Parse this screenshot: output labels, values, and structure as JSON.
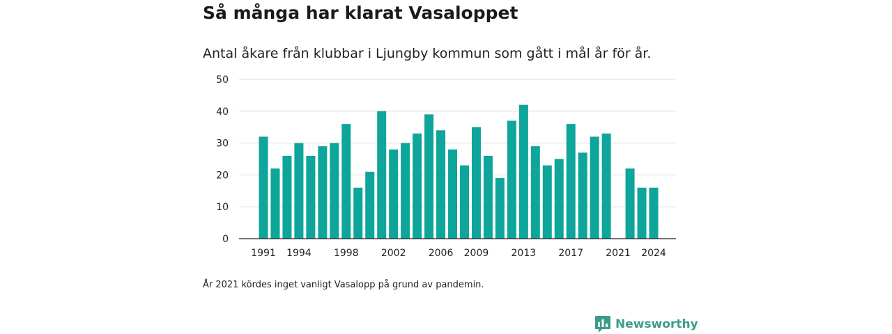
{
  "header": {
    "title": "Så många har klarat Vasaloppet",
    "subtitle": "Antal åkare från klubbar i Ljungby kommun som gått i mål år för år."
  },
  "footer": {
    "note": "År 2021 kördes inget vanligt Vasalopp på grund av pandemin.",
    "brand": "Newsworthy",
    "brand_icon": "newsworthy-logo-icon"
  },
  "colors": {
    "bar": "#0ea59a",
    "brand": "#3a9d8c",
    "grid": "#dddddd",
    "axis": "#222222"
  },
  "chart_data": {
    "type": "bar",
    "title": "",
    "xlabel": "",
    "ylabel": "",
    "ylim": [
      0,
      50
    ],
    "yticks": [
      0,
      10,
      20,
      30,
      40,
      50
    ],
    "grid": true,
    "x": [
      1991,
      1992,
      1993,
      1994,
      1995,
      1996,
      1997,
      1998,
      1999,
      2000,
      2001,
      2002,
      2003,
      2004,
      2005,
      2006,
      2007,
      2008,
      2009,
      2010,
      2011,
      2012,
      2013,
      2014,
      2015,
      2016,
      2017,
      2018,
      2019,
      2020,
      2021,
      2022,
      2023,
      2024
    ],
    "values": [
      32,
      22,
      26,
      30,
      26,
      29,
      30,
      36,
      16,
      21,
      40,
      28,
      30,
      33,
      39,
      34,
      28,
      23,
      35,
      26,
      19,
      37,
      42,
      29,
      23,
      25,
      36,
      27,
      32,
      33,
      null,
      22,
      16,
      16
    ],
    "xtick_labels": [
      "1991",
      "1994",
      "1998",
      "2002",
      "2006",
      "2009",
      "2013",
      "2017",
      "2021",
      "2024"
    ]
  }
}
